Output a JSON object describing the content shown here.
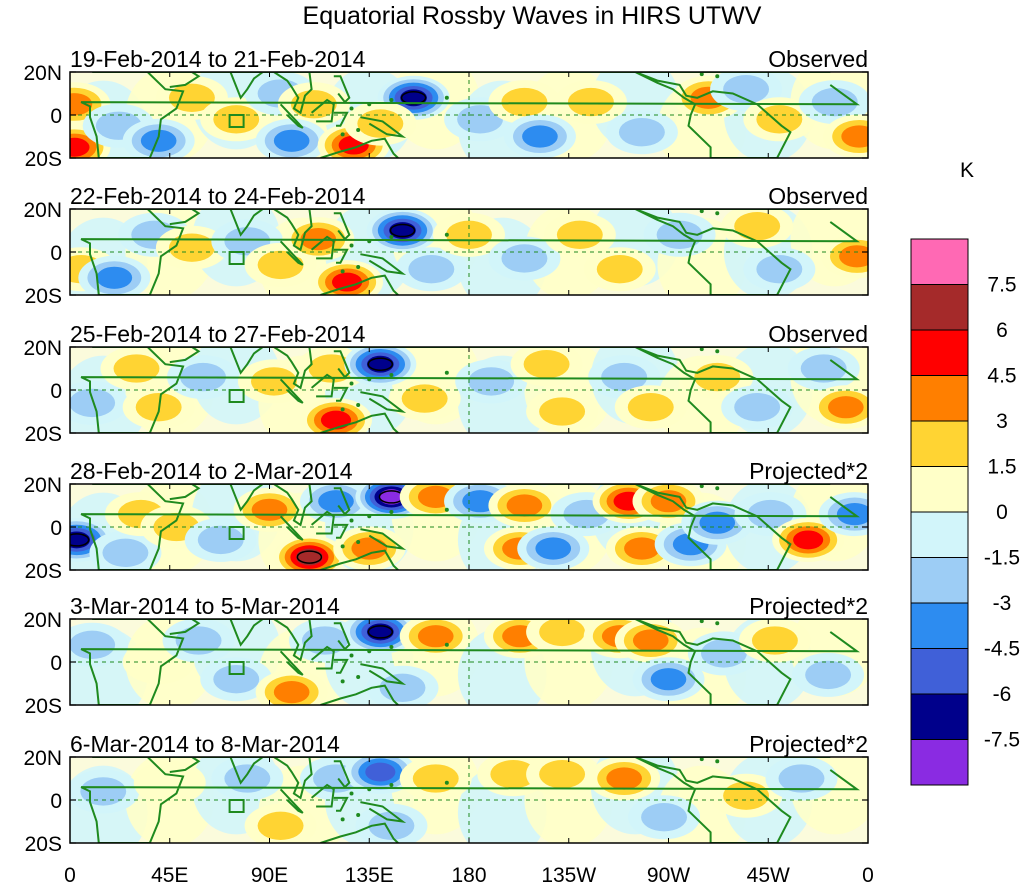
{
  "title": "Equatorial Rossby Waves in HIRS UTWV",
  "colorbar": {
    "unit": "K",
    "levels": [
      "7.5",
      "6",
      "4.5",
      "3",
      "1.5",
      "0",
      "-1.5",
      "-3",
      "-4.5",
      "-6",
      "-7.5"
    ],
    "colors": [
      "#ff69b4",
      "#a52a2a",
      "#ff0000",
      "#ff7f00",
      "#ffd433",
      "#ffffc8",
      "#d2f5fa",
      "#9dcdf5",
      "#2d8cf0",
      "#4060d8",
      "#00008b",
      "#8a2be2"
    ]
  },
  "axes": {
    "x_ticks": [
      "0",
      "45E",
      "90E",
      "135E",
      "180",
      "135W",
      "90W",
      "45W",
      "0"
    ],
    "y_ticks": [
      "20N",
      "0",
      "20S"
    ]
  },
  "panels": [
    {
      "left": "19-Feb-2014 to 21-Feb-2014",
      "right": "Observed"
    },
    {
      "left": "22-Feb-2014 to 24-Feb-2014",
      "right": "Observed"
    },
    {
      "left": "25-Feb-2014 to 27-Feb-2014",
      "right": "Observed"
    },
    {
      "left": "28-Feb-2014 to 2-Mar-2014",
      "right": "Projected*2"
    },
    {
      "left": "3-Mar-2014 to 5-Mar-2014",
      "right": "Projected*2"
    },
    {
      "left": "6-Mar-2014 to 8-Mar-2014",
      "right": "Projected*2"
    }
  ],
  "anomalies": [
    [
      {
        "lon": 2,
        "lat": 5,
        "v": 4.5
      },
      {
        "lon": 2,
        "lat": -15,
        "v": 5.5
      },
      {
        "lon": 22,
        "lat": -5,
        "v": -3
      },
      {
        "lon": 40,
        "lat": -12,
        "v": -3.5
      },
      {
        "lon": 55,
        "lat": 8,
        "v": 2.5
      },
      {
        "lon": 75,
        "lat": -2,
        "v": 2
      },
      {
        "lon": 95,
        "lat": 10,
        "v": -2.5
      },
      {
        "lon": 110,
        "lat": 5,
        "v": 3
      },
      {
        "lon": 100,
        "lat": -12,
        "v": -3.5
      },
      {
        "lon": 128,
        "lat": -14,
        "v": 5
      },
      {
        "lon": 155,
        "lat": 8,
        "v": -7
      },
      {
        "lon": 140,
        "lat": -4,
        "v": 2
      },
      {
        "lon": 185,
        "lat": -2,
        "v": -2
      },
      {
        "lon": 205,
        "lat": 6,
        "v": 2.5
      },
      {
        "lon": 212,
        "lat": -10,
        "v": -3.5
      },
      {
        "lon": 235,
        "lat": 6,
        "v": 2.5
      },
      {
        "lon": 258,
        "lat": -8,
        "v": -3
      },
      {
        "lon": 288,
        "lat": 8,
        "v": 4
      },
      {
        "lon": 305,
        "lat": 12,
        "v": -2
      },
      {
        "lon": 320,
        "lat": -2,
        "v": 2
      },
      {
        "lon": 345,
        "lat": 6,
        "v": -2.5
      },
      {
        "lon": 356,
        "lat": -10,
        "v": 4
      }
    ],
    [
      {
        "lon": 5,
        "lat": -8,
        "v": 2.5
      },
      {
        "lon": 20,
        "lat": -12,
        "v": -3.5
      },
      {
        "lon": 38,
        "lat": 8,
        "v": -2.5
      },
      {
        "lon": 55,
        "lat": 2,
        "v": 2.5
      },
      {
        "lon": 80,
        "lat": 5,
        "v": -2.5
      },
      {
        "lon": 95,
        "lat": -6,
        "v": 2
      },
      {
        "lon": 112,
        "lat": 6,
        "v": 3.5
      },
      {
        "lon": 125,
        "lat": -14,
        "v": 6
      },
      {
        "lon": 150,
        "lat": 10,
        "v": -7
      },
      {
        "lon": 163,
        "lat": -8,
        "v": -2.5
      },
      {
        "lon": 180,
        "lat": 8,
        "v": 2
      },
      {
        "lon": 205,
        "lat": -3,
        "v": -3
      },
      {
        "lon": 230,
        "lat": 8,
        "v": 2
      },
      {
        "lon": 248,
        "lat": -8,
        "v": 2
      },
      {
        "lon": 275,
        "lat": 8,
        "v": -2.5
      },
      {
        "lon": 310,
        "lat": 12,
        "v": 2.5
      },
      {
        "lon": 320,
        "lat": -8,
        "v": -2.5
      },
      {
        "lon": 355,
        "lat": -2,
        "v": 4.5
      }
    ],
    [
      {
        "lon": 10,
        "lat": -6,
        "v": -3
      },
      {
        "lon": 30,
        "lat": 10,
        "v": 2
      },
      {
        "lon": 40,
        "lat": -8,
        "v": 2.5
      },
      {
        "lon": 60,
        "lat": 6,
        "v": -2.5
      },
      {
        "lon": 92,
        "lat": 4,
        "v": 2.5
      },
      {
        "lon": 118,
        "lat": 10,
        "v": 3
      },
      {
        "lon": 120,
        "lat": -14,
        "v": 5.5
      },
      {
        "lon": 140,
        "lat": 12,
        "v": -7
      },
      {
        "lon": 160,
        "lat": -4,
        "v": 2
      },
      {
        "lon": 190,
        "lat": 4,
        "v": -2.5
      },
      {
        "lon": 215,
        "lat": 12,
        "v": 2
      },
      {
        "lon": 222,
        "lat": -10,
        "v": 3
      },
      {
        "lon": 250,
        "lat": 6,
        "v": -2
      },
      {
        "lon": 262,
        "lat": -8,
        "v": 2.5
      },
      {
        "lon": 292,
        "lat": 6,
        "v": 2
      },
      {
        "lon": 310,
        "lat": -8,
        "v": -2.5
      },
      {
        "lon": 340,
        "lat": 10,
        "v": -2
      },
      {
        "lon": 350,
        "lat": -8,
        "v": 4
      }
    ],
    [
      {
        "lon": 3,
        "lat": -6,
        "v": -6.5
      },
      {
        "lon": 25,
        "lat": -12,
        "v": -3
      },
      {
        "lon": 32,
        "lat": 6,
        "v": 2
      },
      {
        "lon": 48,
        "lat": 0,
        "v": 3
      },
      {
        "lon": 68,
        "lat": -6,
        "v": -2.5
      },
      {
        "lon": 90,
        "lat": 8,
        "v": 4
      },
      {
        "lon": 108,
        "lat": -14,
        "v": 7
      },
      {
        "lon": 135,
        "lat": -10,
        "v": 4
      },
      {
        "lon": 120,
        "lat": 12,
        "v": -4
      },
      {
        "lon": 145,
        "lat": 14,
        "v": -8
      },
      {
        "lon": 165,
        "lat": 14,
        "v": 4
      },
      {
        "lon": 185,
        "lat": 12,
        "v": -3.5
      },
      {
        "lon": 205,
        "lat": 10,
        "v": 4.5
      },
      {
        "lon": 203,
        "lat": -10,
        "v": 4
      },
      {
        "lon": 218,
        "lat": -10,
        "v": -3.5
      },
      {
        "lon": 233,
        "lat": 6,
        "v": -3
      },
      {
        "lon": 252,
        "lat": 12,
        "v": 5
      },
      {
        "lon": 258,
        "lat": -10,
        "v": 4.5
      },
      {
        "lon": 270,
        "lat": 12,
        "v": 3.5
      },
      {
        "lon": 280,
        "lat": -8,
        "v": -4.5
      },
      {
        "lon": 292,
        "lat": 2,
        "v": -3.5
      },
      {
        "lon": 316,
        "lat": 6,
        "v": -2.5
      },
      {
        "lon": 333,
        "lat": -6,
        "v": 5.5
      },
      {
        "lon": 354,
        "lat": 6,
        "v": -3.5
      }
    ],
    [
      {
        "lon": 10,
        "lat": 8,
        "v": -2
      },
      {
        "lon": 40,
        "lat": 0,
        "v": 1.5
      },
      {
        "lon": 58,
        "lat": 10,
        "v": -2
      },
      {
        "lon": 75,
        "lat": -8,
        "v": -2
      },
      {
        "lon": 100,
        "lat": -14,
        "v": 4
      },
      {
        "lon": 115,
        "lat": 10,
        "v": -2.5
      },
      {
        "lon": 140,
        "lat": 14,
        "v": -7.5
      },
      {
        "lon": 165,
        "lat": 12,
        "v": 4
      },
      {
        "lon": 150,
        "lat": -12,
        "v": -2
      },
      {
        "lon": 203,
        "lat": 12,
        "v": 4.5
      },
      {
        "lon": 222,
        "lat": 14,
        "v": 2
      },
      {
        "lon": 248,
        "lat": 12,
        "v": 4
      },
      {
        "lon": 262,
        "lat": 10,
        "v": 3.5
      },
      {
        "lon": 270,
        "lat": -8,
        "v": -4
      },
      {
        "lon": 295,
        "lat": 4,
        "v": -3
      },
      {
        "lon": 318,
        "lat": 10,
        "v": 3
      },
      {
        "lon": 342,
        "lat": -6,
        "v": -2.5
      }
    ],
    [
      {
        "lon": 15,
        "lat": 4,
        "v": -2
      },
      {
        "lon": 45,
        "lat": 8,
        "v": 1.5
      },
      {
        "lon": 80,
        "lat": 10,
        "v": -2
      },
      {
        "lon": 95,
        "lat": -12,
        "v": 2
      },
      {
        "lon": 120,
        "lat": 10,
        "v": -2.5
      },
      {
        "lon": 140,
        "lat": 13,
        "v": -5
      },
      {
        "lon": 145,
        "lat": -12,
        "v": -2
      },
      {
        "lon": 165,
        "lat": 10,
        "v": 3
      },
      {
        "lon": 200,
        "lat": 12,
        "v": 2.5
      },
      {
        "lon": 222,
        "lat": 12,
        "v": 2
      },
      {
        "lon": 250,
        "lat": 10,
        "v": 3.5
      },
      {
        "lon": 268,
        "lat": -8,
        "v": -2.5
      },
      {
        "lon": 305,
        "lat": 2,
        "v": 2
      },
      {
        "lon": 330,
        "lat": 10,
        "v": -2
      }
    ]
  ]
}
